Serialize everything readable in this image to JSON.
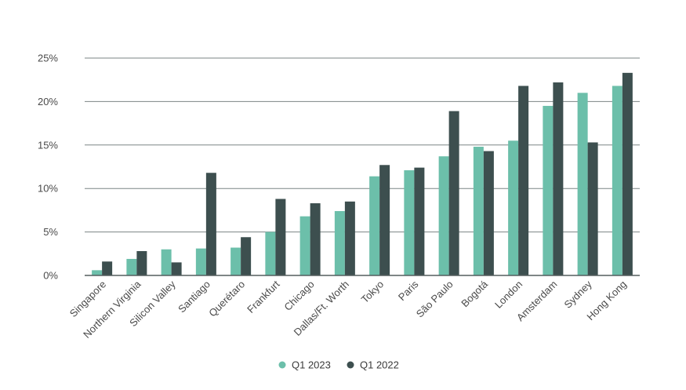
{
  "chart_data": {
    "type": "bar",
    "categories": [
      "Singapore",
      "Northern Virginia",
      "Silicon Valley",
      "Santiago",
      "Querétaro",
      "Frankfurt",
      "Chicago",
      "Dallas/Ft. Worth",
      "Tokyo",
      "Paris",
      "São Paulo",
      "Bogotá",
      "London",
      "Amsterdam",
      "Sydney",
      "Hong Kong"
    ],
    "series": [
      {
        "name": "Q1 2023",
        "color": "#6cbfaa",
        "values": [
          0.6,
          1.9,
          3.0,
          3.1,
          3.2,
          5.0,
          6.8,
          7.4,
          11.4,
          12.1,
          13.7,
          14.8,
          15.5,
          19.5,
          21.0,
          21.8
        ]
      },
      {
        "name": "Q1 2022",
        "color": "#3d4f4f",
        "values": [
          1.6,
          2.8,
          1.5,
          11.8,
          4.4,
          8.8,
          8.3,
          8.5,
          12.7,
          12.4,
          18.9,
          14.3,
          21.8,
          22.2,
          15.3,
          23.3
        ]
      }
    ],
    "yticks": [
      "0%",
      "5%",
      "10%",
      "15%",
      "20%",
      "25%"
    ],
    "ylim": [
      0,
      25
    ],
    "grid": true,
    "legend": "bottom-center",
    "title": "",
    "xlabel": "",
    "ylabel": ""
  }
}
